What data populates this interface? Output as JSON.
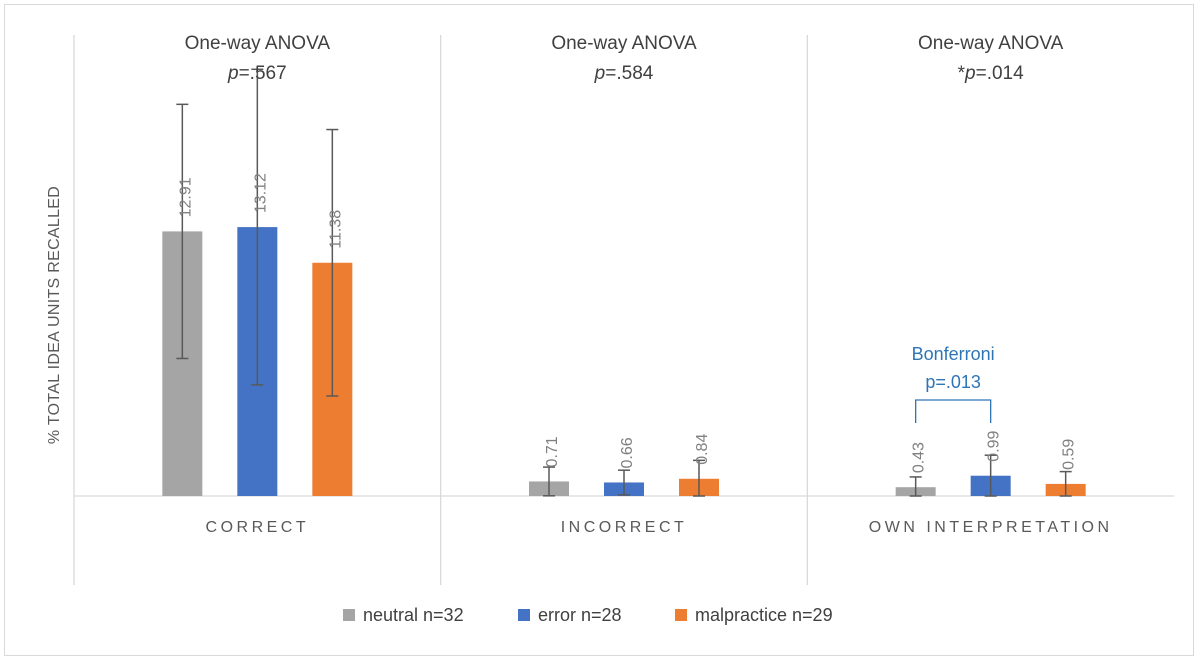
{
  "chart_data": {
    "type": "bar",
    "ylabel": "% TOTAL IDEA UNITS RECALLED",
    "ylim": [
      0,
      22.2
    ],
    "categories": [
      "CORRECT",
      "INCORRECT",
      "OWN INTERPRETATION"
    ],
    "group_titles": [
      {
        "test": "One-way ANOVA",
        "p_prefix": "",
        "p_italic": "p",
        "p_value": "=.567"
      },
      {
        "test": "One-way ANOVA",
        "p_prefix": "",
        "p_italic": "p",
        "p_value": "=.584"
      },
      {
        "test": "One-way ANOVA",
        "p_prefix": "*",
        "p_italic": "p",
        "p_value": "=.014"
      }
    ],
    "series": [
      {
        "name": "neutral n=32",
        "color": "#a5a5a5",
        "values": [
          12.91,
          0.71,
          0.43
        ],
        "labels": [
          "12.91",
          "0.71",
          "0.43"
        ],
        "err_high": [
          6.2,
          0.7,
          0.5
        ],
        "err_low": [
          6.2,
          0.7,
          0.5
        ]
      },
      {
        "name": "error n=28",
        "color": "#4472c4",
        "values": [
          13.12,
          0.66,
          0.99
        ],
        "labels": [
          "13.12",
          "0.66",
          "0.99"
        ],
        "err_high": [
          7.7,
          0.6,
          1.0
        ],
        "err_low": [
          7.7,
          0.6,
          1.0
        ]
      },
      {
        "name": "malpractice n=29",
        "color": "#ed7d31",
        "values": [
          11.38,
          0.84,
          0.59
        ],
        "labels": [
          "11.38",
          "0.84",
          "0.59"
        ],
        "err_high": [
          6.5,
          0.9,
          0.6
        ],
        "err_low": [
          6.5,
          0.9,
          0.6
        ]
      }
    ],
    "annotation": {
      "line1": "Bonferroni",
      "line2": "p=.013",
      "group": 2,
      "between": [
        "neutral n=32",
        "error n=28"
      ]
    },
    "colors": {
      "axis": "#d9d9d9",
      "error_bar": "#595959",
      "annotation": "#2e75b6"
    }
  }
}
